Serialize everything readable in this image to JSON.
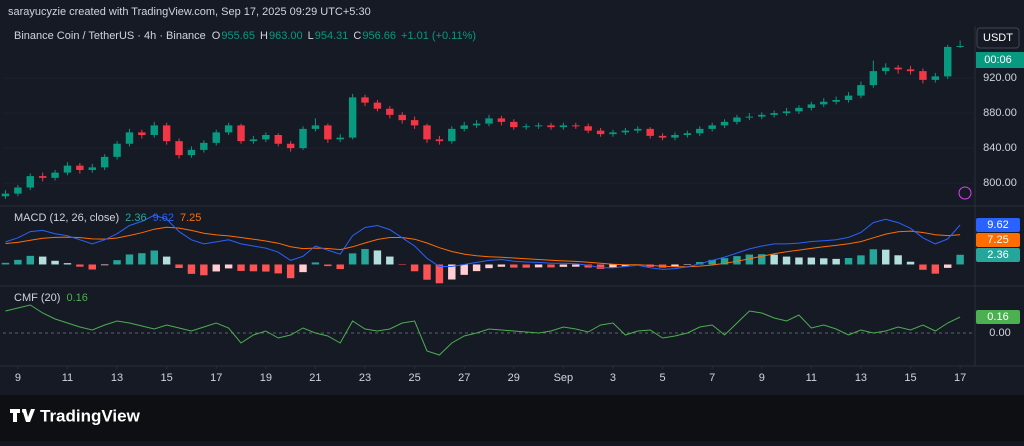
{
  "header": {
    "caption": "sarayucyzie created with TradingView.com, Sep 17, 2025 09:29 UTC+5:30"
  },
  "footer": {
    "brand": "TradingView"
  },
  "chart_data": [
    {
      "type": "candlestick",
      "title": "Binance Coin / TetherUS · 4h · Binance",
      "ohlc_letters": [
        "O",
        "H",
        "L",
        "C"
      ],
      "last_ohlc_labels": [
        "955.65",
        "963.00",
        "954.31",
        "956.66"
      ],
      "change": "+1.01 (+0.11%)",
      "currency": "USDT",
      "countdown": "00:06",
      "up_color": "#089981",
      "down_color": "#f23645",
      "open": [
        785,
        788,
        795,
        808,
        806,
        812,
        820,
        815,
        818,
        830,
        845,
        858,
        855,
        866,
        848,
        832,
        838,
        846,
        858,
        866,
        848,
        850,
        855,
        845,
        840,
        862,
        866,
        850,
        852,
        898,
        892,
        885,
        878,
        872,
        866,
        850,
        848,
        862,
        866,
        868,
        874,
        870,
        864,
        865,
        866,
        864,
        866,
        865,
        860,
        856,
        858,
        860,
        862,
        854,
        852,
        855,
        857,
        862,
        866,
        870,
        875,
        876,
        878,
        880,
        882,
        886,
        890,
        893,
        895,
        900,
        912,
        928,
        932,
        930,
        928,
        918,
        922,
        955.65
      ],
      "high": [
        792,
        798,
        811,
        812,
        815,
        824,
        823,
        822,
        833,
        848,
        862,
        861,
        870,
        869,
        851,
        842,
        849,
        861,
        869,
        868,
        854,
        858,
        857,
        848,
        865,
        874,
        868,
        856,
        902,
        901,
        895,
        888,
        881,
        876,
        868,
        854,
        865,
        870,
        872,
        878,
        877,
        873,
        868,
        869,
        869,
        869,
        869,
        868,
        863,
        861,
        863,
        865,
        864,
        857,
        858,
        860,
        865,
        869,
        873,
        878,
        880,
        881,
        883,
        886,
        889,
        893,
        897,
        899,
        904,
        916,
        940,
        937,
        935,
        934,
        931,
        926,
        958,
        963
      ],
      "low": [
        782,
        785,
        792,
        802,
        803,
        809,
        811,
        812,
        815,
        827,
        842,
        851,
        852,
        844,
        828,
        829,
        835,
        843,
        855,
        845,
        845,
        847,
        842,
        836,
        838,
        859,
        846,
        847,
        850,
        888,
        882,
        874,
        868,
        862,
        846,
        844,
        845,
        859,
        863,
        865,
        866,
        861,
        861,
        862,
        861,
        861,
        862,
        857,
        853,
        853,
        855,
        857,
        851,
        849,
        849,
        852,
        854,
        859,
        863,
        867,
        872,
        873,
        875,
        877,
        879,
        883,
        887,
        890,
        892,
        897,
        909,
        924,
        925,
        924,
        914,
        915,
        919,
        954.31
      ],
      "close": [
        788,
        795,
        808,
        806,
        812,
        820,
        815,
        818,
        830,
        845,
        858,
        855,
        866,
        848,
        832,
        838,
        846,
        858,
        866,
        848,
        850,
        855,
        845,
        840,
        862,
        866,
        850,
        852,
        898,
        892,
        885,
        878,
        872,
        866,
        850,
        848,
        862,
        866,
        868,
        874,
        870,
        864,
        865,
        866,
        864,
        866,
        865,
        860,
        856,
        858,
        860,
        862,
        854,
        852,
        855,
        857,
        862,
        866,
        870,
        875,
        876,
        878,
        880,
        882,
        886,
        890,
        893,
        895,
        900,
        912,
        928,
        932,
        930,
        928,
        918,
        922,
        955.65,
        956.66
      ],
      "xlim": [
        -0.2,
        78.2
      ],
      "ylim": [
        775,
        975
      ],
      "yticks": [
        {
          "value": 800,
          "label": "800.00"
        },
        {
          "value": 840,
          "label": "840.00"
        },
        {
          "value": 880,
          "label": "880.00"
        },
        {
          "value": 920,
          "label": "920.00"
        }
      ],
      "grid": true
    },
    {
      "type": "macd",
      "title": "MACD (12, 26, close)",
      "macd": {
        "color": "#2962ff",
        "values": [
          5.5,
          6.5,
          8.0,
          8.3,
          7.5,
          7.0,
          6.0,
          5.0,
          6.0,
          7.5,
          9.5,
          10.5,
          12.0,
          11.0,
          8.0,
          6.0,
          5.0,
          5.5,
          6.0,
          5.0,
          4.5,
          4.0,
          3.0,
          1.0,
          2.0,
          4.5,
          3.5,
          2.5,
          7.0,
          9.0,
          9.5,
          8.5,
          6.5,
          4.5,
          1.5,
          -0.5,
          -0.5,
          0.0,
          0.5,
          1.0,
          1.2,
          0.8,
          0.6,
          0.5,
          0.3,
          0.3,
          0.2,
          -0.2,
          -0.8,
          -0.8,
          -0.5,
          -0.2,
          -0.8,
          -1.2,
          -1.0,
          -0.6,
          0.2,
          1.0,
          1.8,
          2.8,
          3.8,
          4.5,
          5.0,
          5.0,
          5.2,
          5.6,
          5.8,
          6.0,
          6.6,
          7.8,
          10.2,
          11.0,
          10.2,
          8.8,
          6.5,
          5.0,
          6.2,
          9.62
        ]
      },
      "signal": {
        "color": "#ff6d00",
        "values": [
          5.1,
          5.38,
          5.9,
          6.38,
          6.6,
          6.68,
          6.54,
          6.23,
          6.19,
          6.45,
          7.06,
          7.75,
          8.6,
          9.08,
          8.86,
          8.29,
          7.63,
          7.2,
          6.96,
          6.57,
          6.16,
          5.73,
          5.18,
          4.34,
          3.87,
          4.0,
          3.9,
          3.62,
          4.3,
          5.24,
          6.09,
          6.57,
          6.56,
          6.15,
          5.22,
          4.08,
          3.16,
          2.53,
          2.12,
          1.9,
          1.76,
          1.57,
          1.38,
          1.2,
          1.02,
          0.88,
          0.74,
          0.55,
          0.28,
          0.06,
          -0.05,
          -0.08,
          -0.22,
          -0.42,
          -0.54,
          -0.55,
          -0.4,
          -0.12,
          0.26,
          0.77,
          1.38,
          2.0,
          2.6,
          3.08,
          3.5,
          3.92,
          4.3,
          4.64,
          5.03,
          5.58,
          6.5,
          7.4,
          7.96,
          8.13,
          7.8,
          7.24,
          7.03,
          7.25
        ]
      },
      "histogram": {
        "colors": [
          "#26a69a",
          "#b2dfdb",
          "#ffcdd2",
          "#ff5252"
        ],
        "values": [
          0.4,
          1.12,
          2.1,
          1.92,
          0.9,
          0.32,
          -0.54,
          -1.23,
          -0.19,
          1.05,
          2.44,
          2.75,
          3.4,
          1.92,
          -0.86,
          -2.29,
          -2.63,
          -1.7,
          -0.96,
          -1.57,
          -1.66,
          -1.73,
          -2.18,
          -3.34,
          -1.87,
          0.5,
          -0.4,
          -1.12,
          2.7,
          3.76,
          3.41,
          1.93,
          -0.06,
          -1.65,
          -3.72,
          -4.58,
          -3.66,
          -2.53,
          -1.62,
          -0.9,
          -0.56,
          -0.77,
          -0.78,
          -0.7,
          -0.72,
          -0.58,
          -0.54,
          -0.75,
          -1.08,
          -0.86,
          -0.45,
          -0.12,
          -0.58,
          -0.78,
          -0.46,
          -0.05,
          0.6,
          1.12,
          1.54,
          2.03,
          2.42,
          2.5,
          2.4,
          1.92,
          1.7,
          1.68,
          1.5,
          1.36,
          1.57,
          2.22,
          3.7,
          3.6,
          2.24,
          0.67,
          -1.3,
          -2.24,
          -0.83,
          2.36
        ]
      },
      "xlim": [
        -0.2,
        78.2
      ],
      "ylim": [
        -5,
        14
      ]
    },
    {
      "type": "line",
      "title": "CMF (20)",
      "color": "#4caf50",
      "values": [
        0.22,
        0.25,
        0.28,
        0.2,
        0.14,
        0.1,
        0.06,
        0.03,
        0.08,
        0.12,
        0.1,
        0.07,
        0.04,
        0.08,
        0.05,
        0.02,
        0.06,
        0.1,
        0.05,
        -0.1,
        -0.02,
        0.02,
        -0.05,
        -0.02,
        0.05,
        0.0,
        -0.03,
        -0.1,
        0.12,
        0.04,
        0.02,
        0.04,
        0.1,
        0.12,
        -0.18,
        -0.22,
        -0.1,
        -0.03,
        0.0,
        0.04,
        0.03,
        0.02,
        0.01,
        0.0,
        0.02,
        0.06,
        0.04,
        0.01,
        0.08,
        0.1,
        -0.02,
        0.02,
        0.03,
        -0.05,
        -0.03,
        0.0,
        0.06,
        0.08,
        -0.02,
        0.1,
        0.22,
        0.2,
        0.15,
        0.12,
        0.18,
        0.05,
        0.08,
        0.04,
        -0.02,
        0.03,
        0.0,
        0.02,
        0.06,
        0.03,
        0.08,
        0.02,
        0.1,
        0.16
      ],
      "xlim": [
        -0.2,
        78.2
      ],
      "ylim": [
        -0.32,
        0.46
      ],
      "yticks": [
        {
          "value": 0,
          "label": "0.00"
        }
      ],
      "xticks": [
        {
          "value": 1,
          "label": "9"
        },
        {
          "value": 5,
          "label": "11"
        },
        {
          "value": 9,
          "label": "13"
        },
        {
          "value": 13,
          "label": "15"
        },
        {
          "value": 17,
          "label": "17"
        },
        {
          "value": 21,
          "label": "19"
        },
        {
          "value": 25,
          "label": "21"
        },
        {
          "value": 29,
          "label": "23"
        },
        {
          "value": 33,
          "label": "25"
        },
        {
          "value": 37,
          "label": "27"
        },
        {
          "value": 41,
          "label": "29"
        },
        {
          "value": 45,
          "label": "Sep"
        },
        {
          "value": 49,
          "label": "3"
        },
        {
          "value": 53,
          "label": "5"
        },
        {
          "value": 57,
          "label": "7"
        },
        {
          "value": 61,
          "label": "9"
        },
        {
          "value": 65,
          "label": "11"
        },
        {
          "value": 69,
          "label": "13"
        },
        {
          "value": 73,
          "label": "15"
        },
        {
          "value": 77,
          "label": "17"
        }
      ]
    }
  ]
}
